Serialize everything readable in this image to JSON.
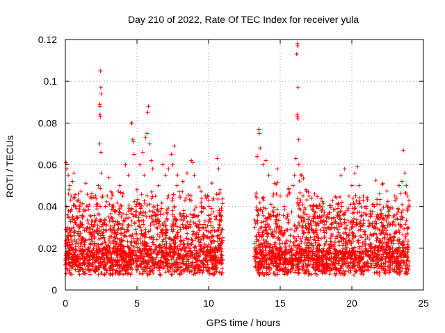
{
  "chart_data": {
    "type": "scatter",
    "title": "Day 210 of 2022, Rate Of TEC Index for receiver yula",
    "xlabel": "GPS time / hours",
    "ylabel": "ROTI / TECUs",
    "xlim": [
      0,
      25
    ],
    "ylim": [
      0,
      0.12
    ],
    "x_ticks": [
      "0",
      "5",
      "10",
      "15",
      "20",
      "25"
    ],
    "y_ticks": [
      "0",
      "0.02",
      "0.04",
      "0.06",
      "0.08",
      "0.1",
      "0.12"
    ],
    "grid": true,
    "marker": "+",
    "color": "#ff0000",
    "data_gap_hours": [
      11.0,
      13.2
    ],
    "series": [
      {
        "points": [
          [
            0.0,
            0.012
          ],
          [
            0.05,
            0.061
          ],
          [
            0.1,
            0.058
          ],
          [
            0.15,
            0.03
          ],
          [
            0.2,
            0.055
          ],
          [
            0.3,
            0.05
          ],
          [
            0.4,
            0.045
          ],
          [
            0.5,
            0.052
          ],
          [
            0.6,
            0.056
          ],
          [
            0.7,
            0.04
          ],
          [
            0.8,
            0.035
          ],
          [
            0.9,
            0.046
          ],
          [
            1.0,
            0.03
          ],
          [
            1.2,
            0.025
          ],
          [
            1.4,
            0.038
          ],
          [
            1.6,
            0.032
          ],
          [
            1.8,
            0.044
          ],
          [
            2.0,
            0.028
          ],
          [
            2.2,
            0.04
          ],
          [
            2.3,
            0.05
          ],
          [
            2.4,
            0.089
          ],
          [
            2.42,
            0.088
          ],
          [
            2.45,
            0.105
          ],
          [
            2.47,
            0.097
          ],
          [
            2.5,
            0.094
          ],
          [
            2.42,
            0.084
          ],
          [
            2.45,
            0.083
          ],
          [
            2.4,
            0.07
          ],
          [
            2.48,
            0.066
          ],
          [
            2.5,
            0.056
          ],
          [
            2.6,
            0.045
          ],
          [
            2.8,
            0.04
          ],
          [
            3.0,
            0.035
          ],
          [
            3.2,
            0.044
          ],
          [
            3.5,
            0.038
          ],
          [
            3.8,
            0.05
          ],
          [
            4.0,
            0.045
          ],
          [
            4.2,
            0.06
          ],
          [
            4.4,
            0.055
          ],
          [
            4.6,
            0.08
          ],
          [
            4.65,
            0.08
          ],
          [
            4.7,
            0.072
          ],
          [
            4.75,
            0.071
          ],
          [
            4.8,
            0.065
          ],
          [
            5.0,
            0.048
          ],
          [
            5.2,
            0.06
          ],
          [
            5.4,
            0.066
          ],
          [
            5.5,
            0.055
          ],
          [
            5.6,
            0.073
          ],
          [
            5.7,
            0.075
          ],
          [
            5.75,
            0.085
          ],
          [
            5.8,
            0.088
          ],
          [
            5.9,
            0.07
          ],
          [
            6.0,
            0.062
          ],
          [
            6.1,
            0.058
          ],
          [
            6.3,
            0.045
          ],
          [
            6.5,
            0.05
          ],
          [
            6.8,
            0.06
          ],
          [
            7.0,
            0.055
          ],
          [
            7.2,
            0.058
          ],
          [
            7.4,
            0.065
          ],
          [
            7.5,
            0.06
          ],
          [
            7.6,
            0.069
          ],
          [
            7.8,
            0.05
          ],
          [
            8.0,
            0.045
          ],
          [
            8.2,
            0.052
          ],
          [
            8.5,
            0.056
          ],
          [
            8.8,
            0.062
          ],
          [
            8.9,
            0.061
          ],
          [
            9.0,
            0.055
          ],
          [
            9.2,
            0.035
          ],
          [
            9.5,
            0.04
          ],
          [
            9.8,
            0.03
          ],
          [
            10.0,
            0.028
          ],
          [
            10.3,
            0.03
          ],
          [
            10.6,
            0.063
          ],
          [
            10.7,
            0.058
          ],
          [
            10.8,
            0.048
          ],
          [
            10.9,
            0.035
          ],
          [
            11.0,
            0.025
          ],
          [
            13.2,
            0.03
          ],
          [
            13.3,
            0.045
          ],
          [
            13.4,
            0.064
          ],
          [
            13.5,
            0.077
          ],
          [
            13.55,
            0.075
          ],
          [
            13.6,
            0.068
          ],
          [
            13.8,
            0.06
          ],
          [
            14.0,
            0.062
          ],
          [
            14.2,
            0.055
          ],
          [
            14.5,
            0.045
          ],
          [
            14.8,
            0.058
          ],
          [
            15.0,
            0.045
          ],
          [
            15.3,
            0.04
          ],
          [
            15.6,
            0.048
          ],
          [
            15.9,
            0.05
          ],
          [
            16.0,
            0.055
          ],
          [
            16.1,
            0.063
          ],
          [
            16.15,
            0.113
          ],
          [
            16.2,
            0.118
          ],
          [
            16.22,
            0.117
          ],
          [
            16.25,
            0.097
          ],
          [
            16.18,
            0.084
          ],
          [
            16.2,
            0.083
          ],
          [
            16.25,
            0.082
          ],
          [
            16.28,
            0.072
          ],
          [
            16.3,
            0.06
          ],
          [
            16.5,
            0.055
          ],
          [
            16.8,
            0.048
          ],
          [
            17.0,
            0.045
          ],
          [
            17.3,
            0.04
          ],
          [
            17.6,
            0.035
          ],
          [
            18.0,
            0.03
          ],
          [
            18.3,
            0.035
          ],
          [
            18.6,
            0.03
          ],
          [
            19.0,
            0.035
          ],
          [
            19.3,
            0.04
          ],
          [
            19.5,
            0.058
          ],
          [
            19.8,
            0.045
          ],
          [
            20.0,
            0.05
          ],
          [
            20.2,
            0.056
          ],
          [
            20.4,
            0.059
          ],
          [
            20.5,
            0.05
          ],
          [
            20.8,
            0.045
          ],
          [
            21.0,
            0.04
          ],
          [
            21.3,
            0.035
          ],
          [
            21.6,
            0.032
          ],
          [
            22.0,
            0.035
          ],
          [
            22.3,
            0.03
          ],
          [
            22.6,
            0.032
          ],
          [
            23.0,
            0.045
          ],
          [
            23.3,
            0.05
          ],
          [
            23.5,
            0.052
          ],
          [
            23.6,
            0.067
          ],
          [
            23.7,
            0.056
          ],
          [
            23.8,
            0.05
          ],
          [
            23.9,
            0.045
          ],
          [
            24.0,
            0.04
          ]
        ]
      }
    ]
  }
}
